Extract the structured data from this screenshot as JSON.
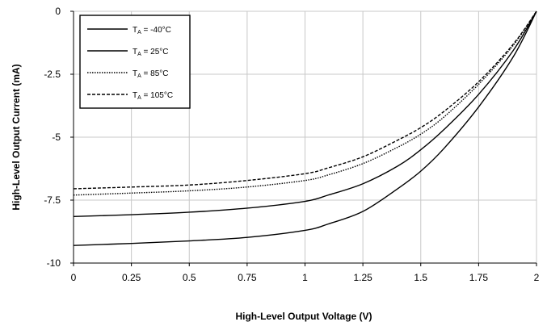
{
  "chart_data": {
    "type": "line",
    "title": "",
    "xlabel": "High-Level Output Voltage (V)",
    "ylabel": "High-Level Output Current (mA)",
    "xlim": [
      0,
      2
    ],
    "ylim": [
      -10,
      0
    ],
    "x_ticks": [
      0,
      0.25,
      0.5,
      0.75,
      1,
      1.25,
      1.5,
      1.75,
      2
    ],
    "x_tick_labels": [
      "0",
      "0.25",
      "0.5",
      "0.75",
      "1",
      "1.25",
      "1.5",
      "1.75",
      "2"
    ],
    "y_ticks": [
      0,
      -2.5,
      -5,
      -7.5,
      -10
    ],
    "y_tick_labels": [
      "0",
      "-2.5",
      "-5",
      "-7.5",
      "-10"
    ],
    "grid": true,
    "legend_position": "top-left",
    "series": [
      {
        "name": "TA = -40°C",
        "label_main": "T",
        "label_sub": "A",
        "label_rest": " = -40°C",
        "dash": "solid",
        "x": [
          0,
          0.25,
          0.5,
          0.75,
          1,
          1.1,
          1.25,
          1.4,
          1.5,
          1.6,
          1.75,
          1.9,
          2
        ],
        "y": [
          -9.3,
          -9.22,
          -9.12,
          -8.98,
          -8.7,
          -8.45,
          -7.95,
          -7.05,
          -6.35,
          -5.45,
          -3.8,
          -1.8,
          0
        ]
      },
      {
        "name": "TA = 25°C",
        "label_main": "T",
        "label_sub": "A",
        "label_rest": " = 25°C",
        "dash": "solid",
        "x": [
          0,
          0.25,
          0.5,
          0.75,
          1,
          1.1,
          1.25,
          1.4,
          1.5,
          1.6,
          1.75,
          1.9,
          2
        ],
        "y": [
          -8.15,
          -8.08,
          -7.98,
          -7.82,
          -7.55,
          -7.3,
          -6.85,
          -6.15,
          -5.5,
          -4.7,
          -3.3,
          -1.55,
          0
        ]
      },
      {
        "name": "TA = 85°C",
        "label_main": "T",
        "label_sub": "A",
        "label_rest": " = 85°C",
        "dash": "dotted",
        "x": [
          0,
          0.25,
          0.5,
          0.75,
          1,
          1.1,
          1.25,
          1.4,
          1.5,
          1.6,
          1.75,
          1.9,
          2
        ],
        "y": [
          -7.3,
          -7.22,
          -7.13,
          -6.98,
          -6.72,
          -6.5,
          -6.05,
          -5.4,
          -4.88,
          -4.2,
          -2.9,
          -1.35,
          0
        ]
      },
      {
        "name": "TA = 105°C",
        "label_main": "T",
        "label_sub": "A",
        "label_rest": " = 105°C",
        "dash": "dashed",
        "x": [
          0,
          0.25,
          0.5,
          0.75,
          1,
          1.1,
          1.25,
          1.4,
          1.5,
          1.6,
          1.75,
          1.9,
          2
        ],
        "y": [
          -7.05,
          -6.98,
          -6.9,
          -6.72,
          -6.45,
          -6.22,
          -5.78,
          -5.12,
          -4.62,
          -3.98,
          -2.8,
          -1.3,
          0
        ]
      }
    ]
  }
}
